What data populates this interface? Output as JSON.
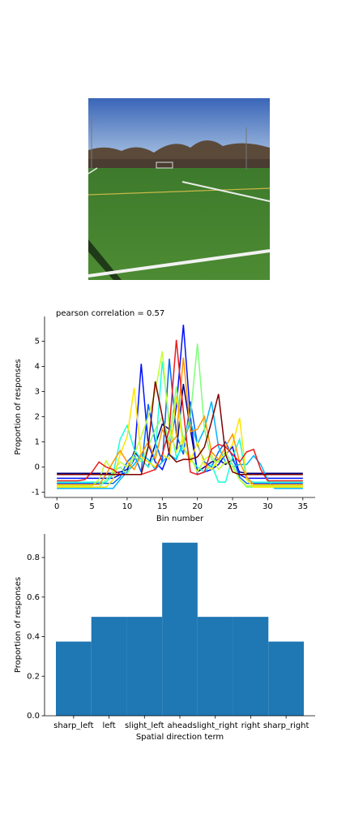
{
  "chart_data": [
    {
      "type": "line",
      "title": "pearson correlation = 0.57",
      "xlabel": "Bin number",
      "ylabel": "Proportion of responses",
      "x": [
        0,
        1,
        2,
        3,
        4,
        5,
        6,
        7,
        8,
        9,
        10,
        11,
        12,
        13,
        14,
        15,
        16,
        17,
        18,
        19,
        20,
        21,
        22,
        23,
        24,
        25,
        26,
        27,
        28,
        29,
        30,
        31,
        32,
        33,
        34,
        35
      ],
      "xlim": [
        -1.75,
        36.75
      ],
      "xticks": [
        0,
        5,
        10,
        15,
        20,
        25,
        30,
        35
      ],
      "ylim": [
        -1.21,
        5.98
      ],
      "yticks": [
        -1,
        0,
        1,
        2,
        3,
        4,
        5
      ],
      "series": [
        {
          "color": "#00007f",
          "values": [
            -0.25,
            -0.25,
            -0.25,
            -0.25,
            -0.25,
            -0.25,
            -0.25,
            -0.25,
            -0.25,
            -0.2,
            -0.1,
            0.6,
            0.3,
            0.0,
            0.9,
            1.7,
            1.5,
            0.6,
            3.3,
            1.5,
            -0.2,
            0.0,
            0.2,
            0.3,
            0.1,
            0.3,
            -0.2,
            -0.25,
            -0.25,
            -0.25,
            -0.25,
            -0.25,
            -0.25,
            -0.25,
            -0.25,
            -0.25
          ]
        },
        {
          "color": "#0010ff",
          "values": [
            -0.45,
            -0.45,
            -0.45,
            -0.45,
            -0.45,
            -0.45,
            -0.45,
            -0.45,
            -0.45,
            -0.3,
            -0.2,
            0.3,
            4.1,
            0.9,
            0.2,
            -0.1,
            0.6,
            2.4,
            5.65,
            2.0,
            -0.3,
            -0.2,
            -0.1,
            0.1,
            0.5,
            0.8,
            -0.3,
            -0.45,
            -0.45,
            -0.45,
            -0.45,
            -0.45,
            -0.45,
            -0.45,
            -0.45,
            -0.45
          ]
        },
        {
          "color": "#0064ff",
          "values": [
            -0.65,
            -0.65,
            -0.65,
            -0.65,
            -0.65,
            -0.65,
            -0.65,
            -0.65,
            -0.65,
            -0.4,
            0.2,
            0.5,
            -0.2,
            2.5,
            1.0,
            0.2,
            4.3,
            1.3,
            0.5,
            2.6,
            0.9,
            0.2,
            0.0,
            0.6,
            1.0,
            0.4,
            -0.4,
            -0.65,
            -0.65,
            -0.65,
            -0.65,
            -0.65,
            -0.65,
            -0.65,
            -0.65,
            -0.65
          ]
        },
        {
          "color": "#00b4ff",
          "values": [
            -0.85,
            -0.85,
            -0.85,
            -0.85,
            -0.85,
            -0.85,
            -0.85,
            -0.85,
            -0.85,
            -0.5,
            -0.2,
            0.1,
            0.5,
            0.3,
            -0.1,
            0.2,
            0.5,
            0.3,
            1.0,
            1.8,
            0.9,
            1.5,
            2.6,
            0.8,
            0.2,
            0.0,
            0.1,
            0.1,
            0.45,
            0.1,
            -0.5,
            -0.85,
            -0.85,
            -0.85,
            -0.85,
            -0.85
          ]
        },
        {
          "color": "#1cffdb",
          "values": [
            -0.6,
            -0.6,
            -0.6,
            -0.6,
            -0.6,
            -0.6,
            -0.6,
            -0.6,
            -0.3,
            1.1,
            1.65,
            0.7,
            0.3,
            0.0,
            0.5,
            4.2,
            1.8,
            0.4,
            0.8,
            0.3,
            0.0,
            -0.2,
            0.1,
            -0.6,
            -0.6,
            0.4,
            1.1,
            -0.5,
            -0.6,
            -0.6,
            -0.6,
            -0.6,
            -0.6,
            -0.6,
            -0.6,
            -0.6
          ]
        },
        {
          "color": "#7dff7a",
          "values": [
            -0.8,
            -0.8,
            -0.8,
            -0.8,
            -0.8,
            -0.8,
            -0.8,
            -0.5,
            -0.2,
            0.0,
            -0.3,
            0.4,
            0.2,
            0.8,
            1.5,
            2.0,
            1.0,
            3.2,
            1.0,
            2.0,
            4.9,
            1.5,
            0.3,
            0.2,
            0.6,
            0.1,
            -0.5,
            -0.8,
            -0.8,
            -0.8,
            -0.8,
            -0.8,
            -0.8,
            -0.8,
            -0.8,
            -0.8
          ]
        },
        {
          "color": "#c4ff33",
          "values": [
            -0.75,
            -0.75,
            -0.75,
            -0.75,
            -0.75,
            -0.75,
            -0.5,
            0.25,
            -0.2,
            0.2,
            0.0,
            0.5,
            1.2,
            2.0,
            3.0,
            4.6,
            1.5,
            0.6,
            1.2,
            0.4,
            -0.2,
            0.3,
            0.5,
            -0.1,
            0.2,
            0.0,
            -0.5,
            -0.75,
            -0.75,
            -0.75,
            -0.75,
            -0.75,
            -0.75,
            -0.75,
            -0.75,
            -0.75
          ]
        },
        {
          "color": "#ffe500",
          "values": [
            -0.8,
            -0.8,
            -0.8,
            -0.8,
            -0.8,
            -0.8,
            -0.8,
            -0.8,
            -0.5,
            0.5,
            1.2,
            3.15,
            0.4,
            0.2,
            0.0,
            0.5,
            0.3,
            2.8,
            0.8,
            0.2,
            1.0,
            0.1,
            -0.1,
            0.3,
            0.5,
            0.9,
            1.95,
            -0.5,
            -0.8,
            -0.8,
            -0.8,
            -0.8,
            -0.8,
            -0.8,
            -0.8,
            -0.8
          ]
        },
        {
          "color": "#ff9400",
          "values": [
            -0.7,
            -0.7,
            -0.7,
            -0.7,
            -0.7,
            -0.7,
            -0.7,
            -0.3,
            0.2,
            0.65,
            0.2,
            -0.1,
            0.5,
            1.0,
            0.3,
            1.5,
            0.9,
            1.2,
            4.35,
            1.4,
            1.5,
            2.0,
            0.6,
            0.3,
            0.8,
            1.3,
            0.2,
            -0.4,
            -0.7,
            -0.7,
            -0.7,
            -0.7,
            -0.7,
            -0.7,
            -0.7,
            -0.7
          ]
        },
        {
          "color": "#ee1a1a",
          "values": [
            -0.55,
            -0.55,
            -0.55,
            -0.55,
            -0.5,
            -0.2,
            0.2,
            0.0,
            -0.1,
            -0.3,
            -0.3,
            -0.3,
            -0.3,
            -0.2,
            -0.1,
            0.5,
            1.5,
            5.05,
            2.2,
            -0.2,
            -0.3,
            -0.2,
            0.7,
            0.9,
            0.8,
            0.5,
            0.2,
            0.6,
            0.7,
            -0.1,
            -0.55,
            -0.55,
            -0.55,
            -0.55,
            -0.55,
            -0.55
          ]
        },
        {
          "color": "#7f0000",
          "values": [
            -0.3,
            -0.3,
            -0.3,
            -0.3,
            -0.3,
            -0.3,
            -0.3,
            -0.3,
            -0.3,
            -0.3,
            -0.3,
            -0.3,
            -0.3,
            0.8,
            3.4,
            2.0,
            0.5,
            0.2,
            0.3,
            0.3,
            0.4,
            0.8,
            1.8,
            2.9,
            0.5,
            -0.2,
            -0.3,
            -0.3,
            -0.3,
            -0.3,
            -0.3,
            -0.3,
            -0.3,
            -0.3,
            -0.3,
            -0.3
          ]
        }
      ]
    },
    {
      "type": "bar",
      "xlabel": "Spatial direction term",
      "ylabel": "Proportion of responses",
      "categories": [
        "sharp_left",
        "left",
        "slight_left",
        "ahead",
        "slight_right",
        "right",
        "sharp_right"
      ],
      "values": [
        0.375,
        0.5,
        0.5,
        0.875,
        0.5,
        0.5,
        0.375
      ],
      "color": "#1f77b4",
      "ylim": [
        0,
        0.919
      ],
      "yticks": [
        {
          "value": 0,
          "label": "0.0"
        },
        0.2,
        0.4,
        0.6,
        0.8
      ]
    }
  ]
}
